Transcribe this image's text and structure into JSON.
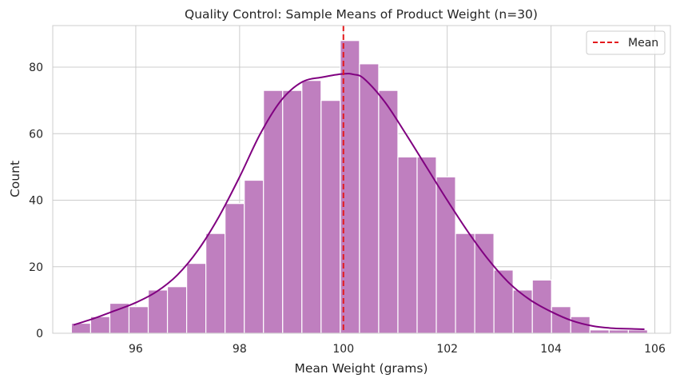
{
  "chart_data": {
    "type": "bar",
    "title": "Quality Control: Sample Means of Product Weight (n=30)",
    "xlabel": "Mean Weight (grams)",
    "ylabel": "Count",
    "xlim": [
      94.4,
      106.3
    ],
    "ylim": [
      0,
      92.5
    ],
    "x_ticks": [
      96,
      98,
      100,
      102,
      104,
      106
    ],
    "y_ticks": [
      0,
      20,
      40,
      60,
      80
    ],
    "grid": true,
    "legend": {
      "position": "top-right",
      "entries": [
        {
          "label": "Mean",
          "style": "dashed",
          "color": "#e31a1c"
        }
      ]
    },
    "bar_color": "#bf7fbf",
    "kde_color": "#800080",
    "bins": {
      "edges": [
        94.76,
        95.13,
        95.5,
        95.87,
        96.24,
        96.61,
        96.98,
        97.35,
        97.72,
        98.09,
        98.46,
        98.83,
        99.2,
        99.57,
        99.94,
        100.31,
        100.68,
        101.05,
        101.42,
        101.79,
        102.16,
        102.53,
        102.9,
        103.27,
        103.64,
        104.01,
        104.38,
        104.75,
        105.12,
        105.49,
        105.86
      ],
      "counts": [
        3,
        5,
        9,
        8,
        13,
        14,
        21,
        30,
        39,
        46,
        73,
        73,
        76,
        70,
        88,
        81,
        73,
        53,
        53,
        47,
        30,
        30,
        19,
        13,
        16,
        8,
        5,
        1,
        1,
        1
      ]
    },
    "kde": {
      "x": [
        94.8,
        95.2,
        95.6,
        96.0,
        96.4,
        96.8,
        97.2,
        97.6,
        98.0,
        98.4,
        98.8,
        99.2,
        99.6,
        100.0,
        100.2,
        100.4,
        100.8,
        101.2,
        101.6,
        102.0,
        102.4,
        102.8,
        103.2,
        103.6,
        104.0,
        104.4,
        104.8,
        105.2,
        105.6,
        105.8
      ],
      "y": [
        2.5,
        4.5,
        6.8,
        9.2,
        12.5,
        17.5,
        25,
        35,
        47,
        60,
        70,
        75.5,
        77,
        78,
        77.8,
        76.5,
        69.5,
        60,
        50,
        40,
        30.5,
        22,
        15,
        10,
        6.5,
        3.8,
        2.2,
        1.5,
        1.3,
        1.2
      ]
    },
    "mean_line": 100.0
  }
}
